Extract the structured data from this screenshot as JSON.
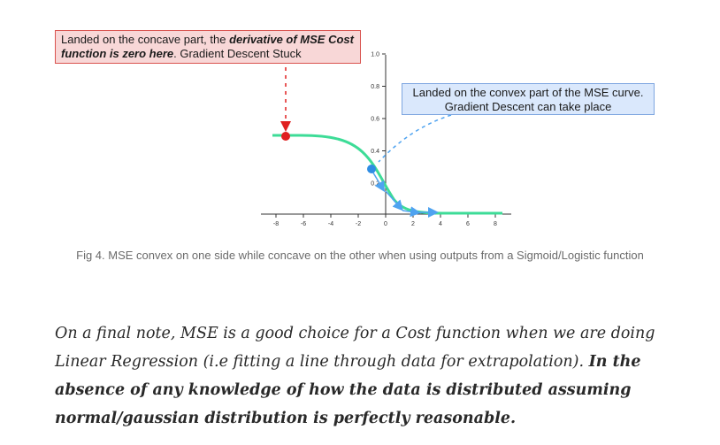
{
  "figure": {
    "callout_concave": {
      "prefix": "Landed on the concave part, the ",
      "emph": "derivative of MSE Cost function is zero here",
      "suffix": ". Gradient Descent Stuck"
    },
    "callout_convex": {
      "text": "Landed on the convex part of the MSE curve. Gradient Descent can take place"
    },
    "x_ticks": [
      "-8",
      "-6",
      "-4",
      "-2",
      "0",
      "2",
      "4",
      "6",
      "8"
    ],
    "y_ticks": [
      "0.2",
      "0.4",
      "0.6",
      "0.8",
      "1.0"
    ],
    "colors": {
      "curve": "#3ddc97",
      "stuck_point": "#e02020",
      "move_point": "#2f8de4",
      "arrow_blue": "#4fa3f0",
      "callout_red_border": "#d9534f",
      "callout_blue_border": "#7ea6e0"
    }
  },
  "caption": "Fig 4. MSE convex on one side while concave on the other when using outputs from a Sigmoid/Logistic function",
  "paragraph": {
    "italic": "On a final note, MSE is a good choice for a Cost function when we are doing Linear Regression (i.e fitting a line through data for extrapolation). ",
    "bold_italic": "In the absence of any knowledge of how the data is distributed assuming normal/gaussian distribution is perfectly reasonable."
  }
}
